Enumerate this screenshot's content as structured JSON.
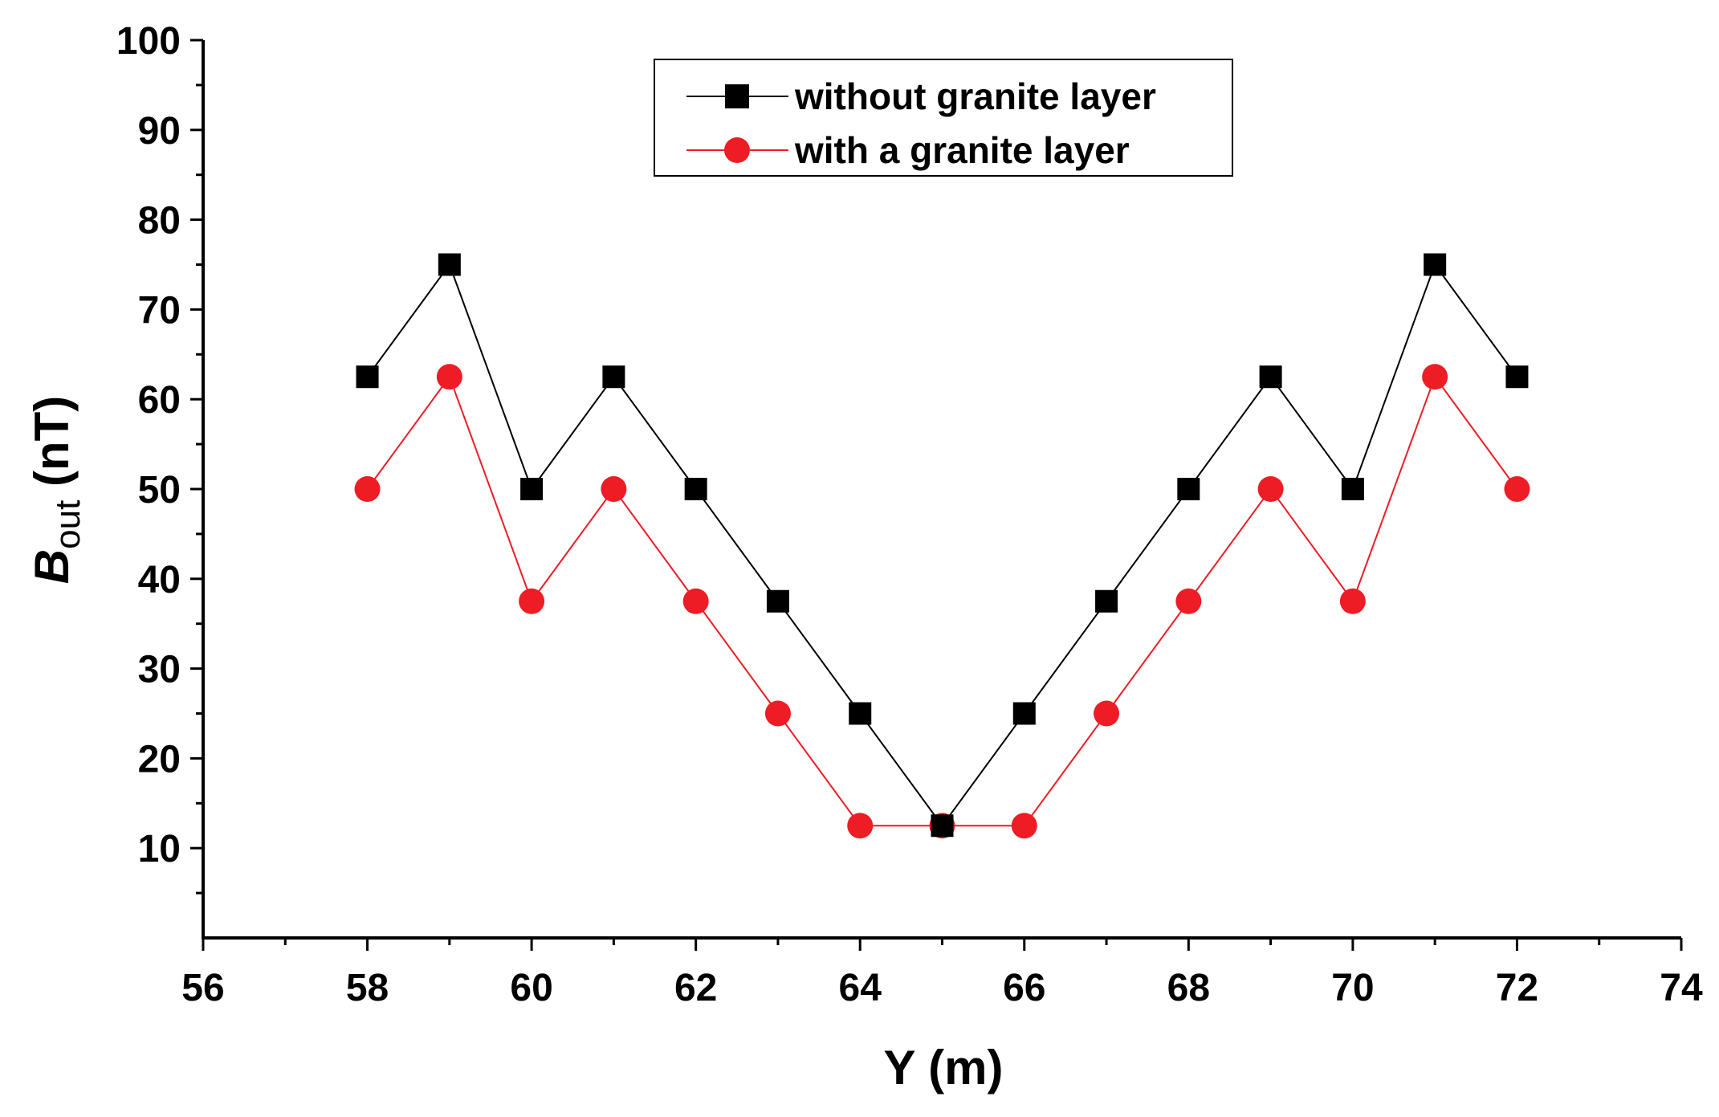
{
  "colors": {
    "series1": "#000000",
    "series2": "#ee1c25",
    "axis": "#000000",
    "background": "#ffffff"
  },
  "chart_data": {
    "type": "line",
    "title": "",
    "xlabel": "Y (m)",
    "ylabel": {
      "symbol": "B",
      "subscript": "out",
      "unit": " (nT)"
    },
    "xlim": [
      56,
      74
    ],
    "ylim": [
      0,
      100
    ],
    "xticks": [
      56,
      58,
      60,
      62,
      64,
      66,
      68,
      70,
      72,
      74
    ],
    "yticks": [
      10,
      20,
      30,
      40,
      50,
      60,
      70,
      80,
      90,
      100
    ],
    "grid": false,
    "legend_position": "top-center",
    "series": [
      {
        "name": "without granite layer",
        "marker": "square",
        "color": "#000000",
        "x": [
          58,
          59,
          60,
          61,
          62,
          63,
          64,
          65,
          66,
          67,
          68,
          69,
          70,
          71,
          72
        ],
        "y": [
          62.5,
          75,
          50,
          62.5,
          50,
          37.5,
          25,
          12.5,
          25,
          37.5,
          50,
          62.5,
          50,
          75,
          62.5
        ]
      },
      {
        "name": "with a granite layer",
        "marker": "circle",
        "color": "#ee1c25",
        "x": [
          58,
          59,
          60,
          61,
          62,
          63,
          64,
          65,
          66,
          67,
          68,
          69,
          70,
          71,
          72
        ],
        "y": [
          50,
          62.5,
          37.5,
          50,
          37.5,
          25,
          12.5,
          12.5,
          12.5,
          25,
          37.5,
          50,
          37.5,
          62.5,
          50
        ]
      }
    ]
  }
}
